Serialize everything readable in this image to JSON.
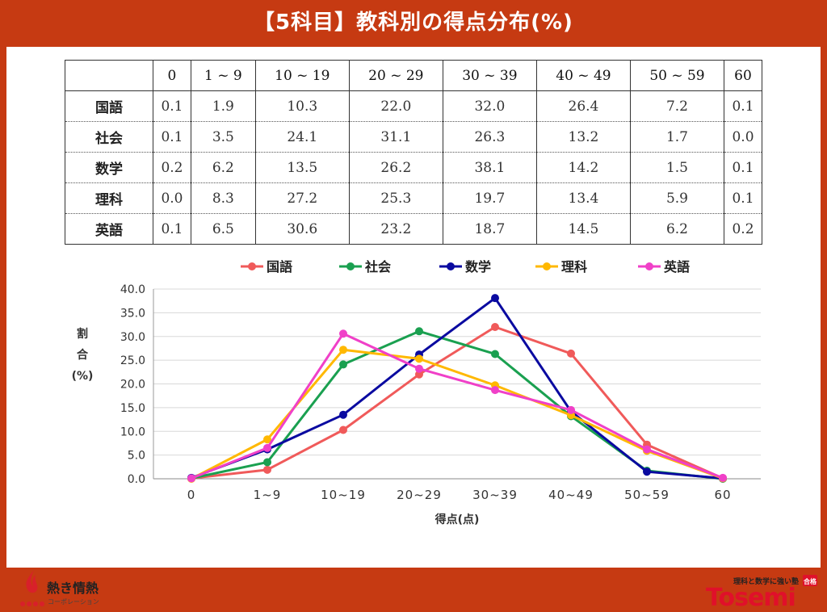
{
  "title": "【5科目】教科別の得点分布(%)",
  "table": {
    "columns": [
      "0",
      "1 ~ 9",
      "10 ~ 19",
      "20 ~ 29",
      "30 ~ 39",
      "40 ~ 49",
      "50 ~ 59",
      "60"
    ],
    "rows": [
      {
        "subject": "国語",
        "values": [
          "0.1",
          "1.9",
          "10.3",
          "22.0",
          "32.0",
          "26.4",
          "7.2",
          "0.1"
        ]
      },
      {
        "subject": "社会",
        "values": [
          "0.1",
          "3.5",
          "24.1",
          "31.1",
          "26.3",
          "13.2",
          "1.7",
          "0.0"
        ]
      },
      {
        "subject": "数学",
        "values": [
          "0.2",
          "6.2",
          "13.5",
          "26.2",
          "38.1",
          "14.2",
          "1.5",
          "0.1"
        ]
      },
      {
        "subject": "理科",
        "values": [
          "0.0",
          "8.3",
          "27.2",
          "25.3",
          "19.7",
          "13.4",
          "5.9",
          "0.1"
        ]
      },
      {
        "subject": "英語",
        "values": [
          "0.1",
          "6.5",
          "30.6",
          "23.2",
          "18.7",
          "14.5",
          "6.2",
          "0.2"
        ]
      }
    ]
  },
  "chart_data": {
    "type": "line",
    "categories": [
      "0",
      "1~9",
      "10~19",
      "20~29",
      "30~39",
      "40~49",
      "50~59",
      "60"
    ],
    "series": [
      {
        "name": "国語",
        "color": "#f05a5a",
        "values": [
          0.1,
          1.9,
          10.3,
          22.0,
          32.0,
          26.4,
          7.2,
          0.1
        ]
      },
      {
        "name": "社会",
        "color": "#1aa050",
        "values": [
          0.1,
          3.5,
          24.1,
          31.1,
          26.3,
          13.2,
          1.7,
          0.0
        ]
      },
      {
        "name": "数学",
        "color": "#0a0aa0",
        "values": [
          0.2,
          6.2,
          13.5,
          26.2,
          38.1,
          14.2,
          1.5,
          0.1
        ]
      },
      {
        "name": "理科",
        "color": "#ffb800",
        "values": [
          0.0,
          8.3,
          27.2,
          25.3,
          19.7,
          13.4,
          5.9,
          0.1
        ]
      },
      {
        "name": "英語",
        "color": "#f040c8",
        "values": [
          0.1,
          6.5,
          30.6,
          23.2,
          18.7,
          14.5,
          6.2,
          0.2
        ]
      }
    ],
    "yticks": [
      "0.0",
      "5.0",
      "10.0",
      "15.0",
      "20.0",
      "25.0",
      "30.0",
      "35.0",
      "40.0"
    ],
    "ylim": [
      0,
      40
    ],
    "ylabel": [
      "割",
      "合",
      "(%)"
    ],
    "xlabel": "得点(点)",
    "legend_position": "top",
    "grid": "horizontal"
  },
  "logos": {
    "left_name": "熱き情熱",
    "left_sub": "コーポレーション",
    "right_tagline": "理科と数学に強い塾",
    "right_brand": "Tosemi",
    "right_badge": "合格"
  }
}
